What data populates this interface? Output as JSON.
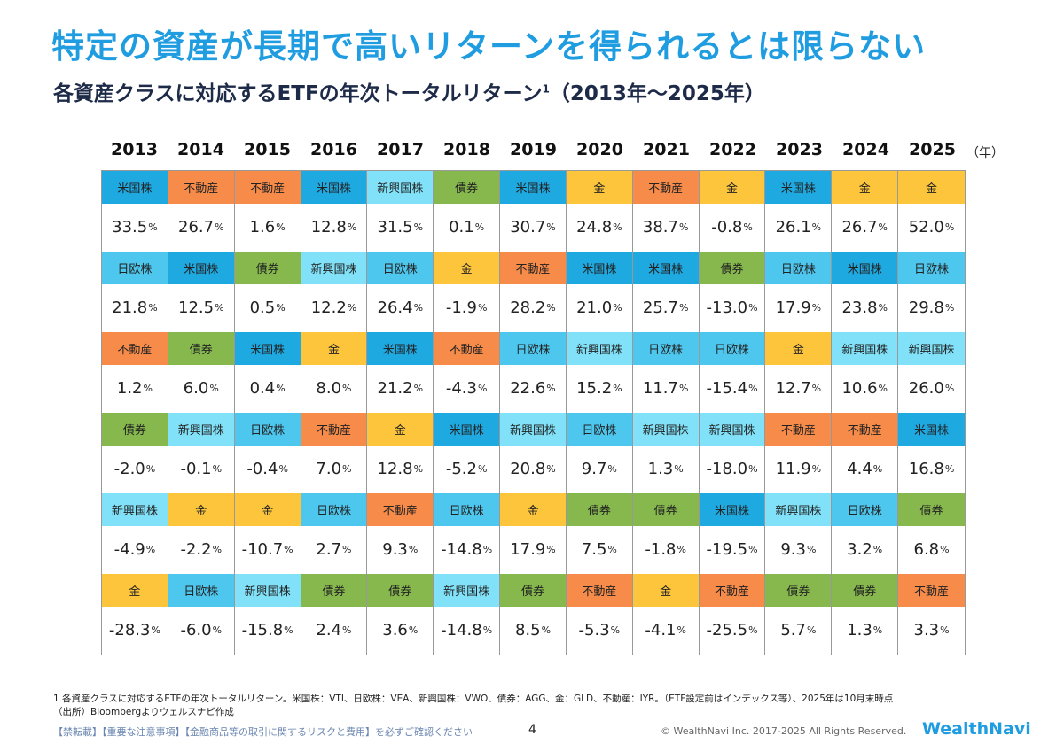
{
  "title": "特定の資産が長期で高いリターンを得られるとは限らない",
  "subtitle": "各資産クラスに対応するETFの年次トータルリターン",
  "subtitle_sup": "1",
  "subtitle_range": "（2013年～2025年）",
  "chart_data": {
    "type": "table",
    "unit_label": "（年）",
    "value_suffix": "%",
    "asset_colors": {
      "米国株": "#1fa9e1",
      "日欧株": "#4ec7ee",
      "新興国株": "#80e1f8",
      "不動産": "#f68b4a",
      "債券": "#86b84d",
      "金": "#fcc53c"
    },
    "years": [
      "2013",
      "2014",
      "2015",
      "2016",
      "2017",
      "2018",
      "2019",
      "2020",
      "2021",
      "2022",
      "2023",
      "2024",
      "2025"
    ],
    "columns": [
      [
        [
          "米国株",
          "33.5"
        ],
        [
          "日欧株",
          "21.8"
        ],
        [
          "不動産",
          "1.2"
        ],
        [
          "債券",
          "-2.0"
        ],
        [
          "新興国株",
          "-4.9"
        ],
        [
          "金",
          "-28.3"
        ]
      ],
      [
        [
          "不動産",
          "26.7"
        ],
        [
          "米国株",
          "12.5"
        ],
        [
          "債券",
          "6.0"
        ],
        [
          "新興国株",
          "-0.1"
        ],
        [
          "金",
          "-2.2"
        ],
        [
          "日欧株",
          "-6.0"
        ]
      ],
      [
        [
          "不動産",
          "1.6"
        ],
        [
          "債券",
          "0.5"
        ],
        [
          "米国株",
          "0.4"
        ],
        [
          "日欧株",
          "-0.4"
        ],
        [
          "金",
          "-10.7"
        ],
        [
          "新興国株",
          "-15.8"
        ]
      ],
      [
        [
          "米国株",
          "12.8"
        ],
        [
          "新興国株",
          "12.2"
        ],
        [
          "金",
          "8.0"
        ],
        [
          "不動産",
          "7.0"
        ],
        [
          "日欧株",
          "2.7"
        ],
        [
          "債券",
          "2.4"
        ]
      ],
      [
        [
          "新興国株",
          "31.5"
        ],
        [
          "日欧株",
          "26.4"
        ],
        [
          "米国株",
          "21.2"
        ],
        [
          "金",
          "12.8"
        ],
        [
          "不動産",
          "9.3"
        ],
        [
          "債券",
          "3.6"
        ]
      ],
      [
        [
          "債券",
          "0.1"
        ],
        [
          "金",
          "-1.9"
        ],
        [
          "不動産",
          "-4.3"
        ],
        [
          "米国株",
          "-5.2"
        ],
        [
          "日欧株",
          "-14.8"
        ],
        [
          "新興国株",
          "-14.8"
        ]
      ],
      [
        [
          "米国株",
          "30.7"
        ],
        [
          "不動産",
          "28.2"
        ],
        [
          "日欧株",
          "22.6"
        ],
        [
          "新興国株",
          "20.8"
        ],
        [
          "金",
          "17.9"
        ],
        [
          "債券",
          "8.5"
        ]
      ],
      [
        [
          "金",
          "24.8"
        ],
        [
          "米国株",
          "21.0"
        ],
        [
          "新興国株",
          "15.2"
        ],
        [
          "日欧株",
          "9.7"
        ],
        [
          "債券",
          "7.5"
        ],
        [
          "不動産",
          "-5.3"
        ]
      ],
      [
        [
          "不動産",
          "38.7"
        ],
        [
          "米国株",
          "25.7"
        ],
        [
          "日欧株",
          "11.7"
        ],
        [
          "新興国株",
          "1.3"
        ],
        [
          "債券",
          "-1.8"
        ],
        [
          "金",
          "-4.1"
        ]
      ],
      [
        [
          "金",
          "-0.8"
        ],
        [
          "債券",
          "-13.0"
        ],
        [
          "日欧株",
          "-15.4"
        ],
        [
          "新興国株",
          "-18.0"
        ],
        [
          "米国株",
          "-19.5"
        ],
        [
          "不動産",
          "-25.5"
        ]
      ],
      [
        [
          "米国株",
          "26.1"
        ],
        [
          "日欧株",
          "17.9"
        ],
        [
          "金",
          "12.7"
        ],
        [
          "不動産",
          "11.9"
        ],
        [
          "新興国株",
          "9.3"
        ],
        [
          "債券",
          "5.7"
        ]
      ],
      [
        [
          "金",
          "26.7"
        ],
        [
          "米国株",
          "23.8"
        ],
        [
          "新興国株",
          "10.6"
        ],
        [
          "不動産",
          "4.4"
        ],
        [
          "日欧株",
          "3.2"
        ],
        [
          "債券",
          "1.3"
        ]
      ],
      [
        [
          "金",
          "52.0"
        ],
        [
          "日欧株",
          "29.8"
        ],
        [
          "新興国株",
          "26.0"
        ],
        [
          "米国株",
          "16.8"
        ],
        [
          "債券",
          "6.8"
        ],
        [
          "不動産",
          "3.3"
        ]
      ]
    ]
  },
  "footnote": {
    "line1": "1 各資産クラスに対応するETFの年次トータルリターン。米国株：VTI、日欧株：VEA、新興国株：VWO、債券：AGG、金：GLD、不動産：IYR。（ETF設定前はインデックス等）、2025年は10月末時点",
    "line2": "（出所）Bloombergよりウェルスナビ作成"
  },
  "footer": {
    "notice": "【禁転載】【重要な注意事項】【金融商品等の取引に関するリスクと費用】を必ずご確認ください",
    "page": "4",
    "copyright": "© WealthNavi Inc. 2017-2025 All Rights Reserved.",
    "logo": "WealthNavi"
  }
}
